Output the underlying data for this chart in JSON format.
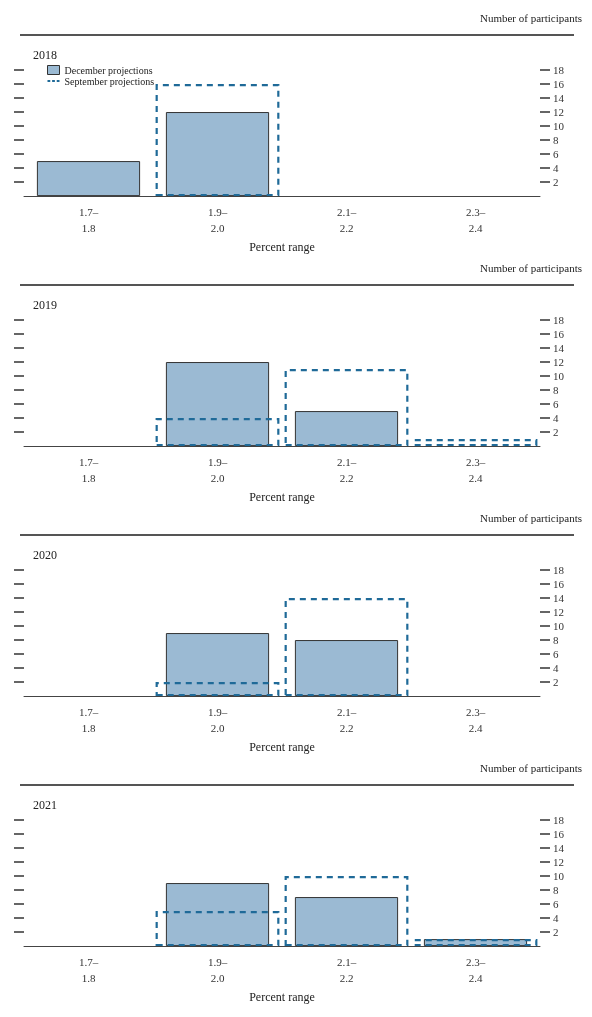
{
  "chart_data": [
    {
      "type": "bar",
      "title": "2018",
      "xlabel": "Percent range",
      "ylabel": "Number of participants",
      "categories": [
        "1.7–\n1.8",
        "1.9–\n2.0",
        "2.1–\n2.2",
        "2.3–\n2.4"
      ],
      "ylim": [
        0,
        18
      ],
      "yticks": [
        2,
        4,
        6,
        8,
        10,
        12,
        14,
        16,
        18
      ],
      "legend": "top left",
      "grid": false,
      "series": [
        {
          "name": "December projections",
          "color": "#9bbad3",
          "values": [
            5,
            12,
            0,
            0
          ]
        },
        {
          "name": "September projections",
          "line_style": "dashed",
          "color": "#1f6a98",
          "values": [
            0,
            16,
            0,
            0
          ]
        }
      ]
    },
    {
      "type": "bar",
      "title": "2019",
      "xlabel": "Percent range",
      "ylabel": "Number of participants",
      "categories": [
        "1.7–\n1.8",
        "1.9–\n2.0",
        "2.1–\n2.2",
        "2.3–\n2.4"
      ],
      "ylim": [
        0,
        18
      ],
      "yticks": [
        2,
        4,
        6,
        8,
        10,
        12,
        14,
        16,
        18
      ],
      "grid": false,
      "series": [
        {
          "color": "#9bbad3",
          "values": [
            0,
            12,
            5,
            0
          ]
        },
        {
          "line_style": "dashed",
          "color": "#1f6a98",
          "values": [
            0,
            4,
            11,
            1
          ]
        }
      ]
    },
    {
      "type": "bar",
      "title": "2020",
      "xlabel": "Percent range",
      "ylabel": "Number of participants",
      "categories": [
        "1.7–\n1.8",
        "1.9–\n2.0",
        "2.1–\n2.2",
        "2.3–\n2.4"
      ],
      "ylim": [
        0,
        18
      ],
      "yticks": [
        2,
        4,
        6,
        8,
        10,
        12,
        14,
        16,
        18
      ],
      "grid": false,
      "series": [
        {
          "color": "#9bbad3",
          "values": [
            0,
            9,
            8,
            0
          ]
        },
        {
          "line_style": "dashed",
          "color": "#1f6a98",
          "values": [
            0,
            2,
            14,
            0
          ]
        }
      ]
    },
    {
      "type": "bar",
      "title": "2021",
      "xlabel": "Percent range",
      "ylabel": "Number of participants",
      "categories": [
        "1.7–\n1.8",
        "1.9–\n2.0",
        "2.1–\n2.2",
        "2.3–\n2.4"
      ],
      "ylim": [
        0,
        18
      ],
      "yticks": [
        2,
        4,
        6,
        8,
        10,
        12,
        14,
        16,
        18
      ],
      "grid": false,
      "series": [
        {
          "color": "#9bbad3",
          "values": [
            0,
            9,
            7,
            1
          ]
        },
        {
          "line_style": "dashed",
          "color": "#1f6a98",
          "values": [
            0,
            5,
            10,
            1
          ]
        }
      ]
    }
  ]
}
